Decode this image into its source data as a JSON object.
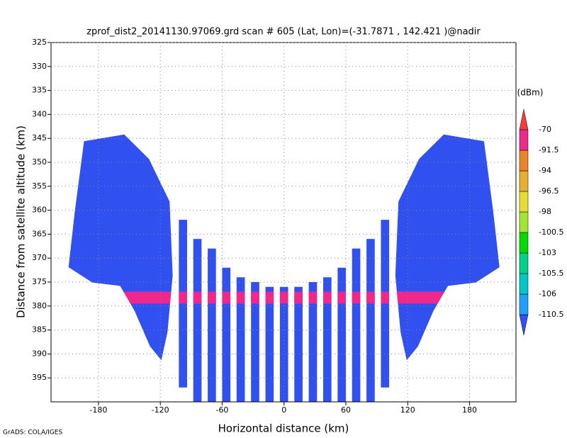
{
  "chart_data": {
    "type": "field",
    "title": "zprof_dist2_20141130.97069.grd  scan # 605  (Lat, Lon)=(-31.7871 , 142.421 )@nadir",
    "x_label": "Horizontal distance (km)",
    "y_label": "Distance from satellite altitude (km)",
    "footer": "GrADS: COLA/IGES",
    "xlim": [
      -226,
      225
    ],
    "xticks": [
      -180,
      -120,
      -60,
      0,
      60,
      120,
      180
    ],
    "ylim": [
      400,
      325
    ],
    "yticks": [
      325,
      330,
      335,
      340,
      345,
      350,
      355,
      360,
      365,
      370,
      375,
      380,
      385,
      390,
      395
    ],
    "grid": true,
    "colorbar": {
      "label": "(dBm)",
      "levels": [
        -110.5,
        -106,
        -105.5,
        -103,
        -100.5,
        -98,
        -96.5,
        -94,
        -91.5,
        -70
      ],
      "colors": [
        "#3050f0",
        "#1ea0ff",
        "#00c8c8",
        "#00d28c",
        "#00dc00",
        "#a0e632",
        "#e6dc32",
        "#e6af2d",
        "#f08228",
        "#f0288c",
        "#fa3c3c"
      ]
    },
    "lobes": [
      {
        "value": -112,
        "x": [
          -194,
          -155,
          -131,
          -111,
          -108,
          -113,
          -119,
          -130,
          -145,
          -159,
          -186,
          -209,
          -203
        ],
        "y": [
          345.6,
          344.2,
          349.3,
          358.2,
          373.6,
          385.4,
          391.3,
          388.4,
          381,
          375.8,
          375.1,
          371.9,
          360.4
        ]
      },
      {
        "value": -112,
        "x": [
          194,
          155,
          131,
          111,
          108,
          113,
          119,
          130,
          145,
          159,
          186,
          209,
          203
        ],
        "y": [
          345.6,
          344.2,
          349.3,
          358.2,
          373.6,
          385.4,
          391.3,
          388.4,
          381,
          375.8,
          375.1,
          371.9,
          360.4
        ]
      }
    ],
    "strands": {
      "value": -112,
      "width": 8,
      "x": [
        -98,
        -84,
        -70,
        -56,
        -42,
        -28,
        -14,
        0,
        14,
        28,
        42,
        56,
        70,
        84,
        98
      ],
      "top": [
        362,
        366,
        368,
        372,
        374,
        375,
        376,
        376,
        376,
        375,
        374,
        372,
        368,
        366,
        362
      ],
      "bottom": [
        397,
        400,
        400,
        400,
        400,
        400,
        400,
        400,
        400,
        400,
        400,
        400,
        400,
        400,
        397
      ]
    },
    "bright_band": {
      "value": -85,
      "x": [
        -155,
        155
      ],
      "y": [
        377,
        379.5
      ]
    }
  }
}
